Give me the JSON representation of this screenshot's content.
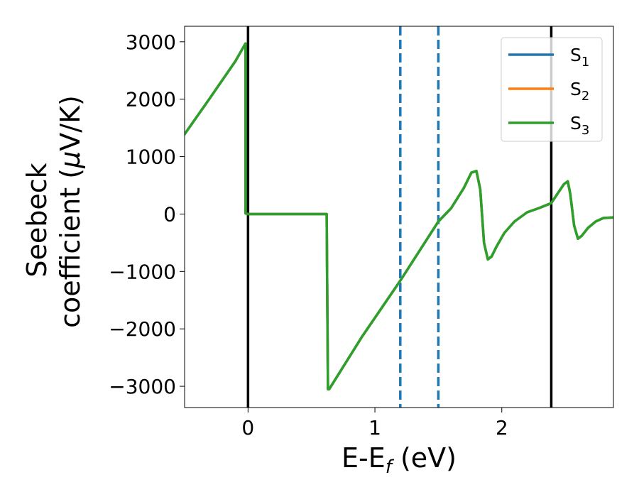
{
  "chart_data": {
    "type": "line",
    "xlabel": {
      "main": "E-E",
      "sub": "f",
      "unit": " (eV)"
    },
    "ylabel": {
      "line1": "Seebeck",
      "line2_pre": "coefficient  (",
      "mu": "μ",
      "line2_post": "V/K)"
    },
    "xlim": [
      -0.5,
      2.88
    ],
    "ylim": [
      -3370,
      3270
    ],
    "xticks": [
      {
        "value": 0,
        "label": "0"
      },
      {
        "value": 1,
        "label": "1"
      },
      {
        "value": 2,
        "label": "2"
      }
    ],
    "yticks": [
      {
        "value": 3000,
        "label": "3000"
      },
      {
        "value": 2000,
        "label": "2000"
      },
      {
        "value": 1000,
        "label": "1000"
      },
      {
        "value": 0,
        "label": "0"
      },
      {
        "value": -1000,
        "label": "−1000"
      },
      {
        "value": -2000,
        "label": "−2000"
      },
      {
        "value": -3000,
        "label": "−3000"
      }
    ],
    "vlines": [
      {
        "x": 0.0,
        "style": "solid",
        "color": "#000000"
      },
      {
        "x": 2.39,
        "style": "solid",
        "color": "#000000"
      },
      {
        "x": 1.2,
        "style": "dashed",
        "color": "#1f77b4"
      },
      {
        "x": 1.5,
        "style": "dashed",
        "color": "#1f77b4"
      }
    ],
    "series": [
      {
        "name": "S",
        "sub": "1",
        "color": "#1f77b4"
      },
      {
        "name": "S",
        "sub": "2",
        "color": "#ff7f0e"
      },
      {
        "name": "S",
        "sub": "3",
        "color": "#2ca02c"
      }
    ],
    "x": [
      -0.5,
      -0.3,
      -0.1,
      -0.02,
      -0.02,
      0.0,
      0.3,
      0.62,
      0.63,
      0.64,
      0.9,
      1.2,
      1.5,
      1.6,
      1.7,
      1.76,
      1.8,
      1.83,
      1.86,
      1.89,
      1.92,
      1.96,
      2.02,
      2.1,
      2.2,
      2.3,
      2.39,
      2.45,
      2.49,
      2.52,
      2.54,
      2.57,
      2.6,
      2.63,
      2.68,
      2.74,
      2.8,
      2.88
    ],
    "y": [
      1390,
      2020,
      2660,
      2970,
      10,
      0,
      0,
      0,
      -3050,
      -3050,
      -2130,
      -1160,
      -130,
      100,
      450,
      720,
      750,
      430,
      -500,
      -790,
      -740,
      -560,
      -330,
      -130,
      30,
      110,
      190,
      390,
      520,
      570,
      350,
      -200,
      -430,
      -380,
      -240,
      -130,
      -70,
      -60
    ],
    "legend_position": "upper right",
    "grid": false
  }
}
